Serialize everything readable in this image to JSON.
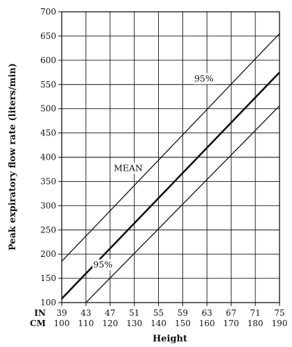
{
  "chart_data": {
    "type": "line",
    "title": "",
    "xlabel": "Height",
    "ylabel": "Peak expiratory flow rate (liters/min)",
    "ylim": [
      100,
      700
    ],
    "yticks": [
      100,
      150,
      200,
      250,
      300,
      350,
      400,
      450,
      500,
      550,
      600,
      650,
      700
    ],
    "xlim": [
      39,
      75
    ],
    "grid": true,
    "x_axis_rows": [
      {
        "label": "IN",
        "ticks": [
          "39",
          "43",
          "47",
          "51",
          "55",
          "59",
          "63",
          "67",
          "71",
          "75"
        ]
      },
      {
        "label": "CM",
        "ticks": [
          "100",
          "110",
          "120",
          "130",
          "140",
          "150",
          "160",
          "170",
          "180",
          "190"
        ]
      }
    ],
    "series": [
      {
        "name": "95%",
        "role": "upper",
        "points": [
          [
            39,
            185
          ],
          [
            75,
            655
          ]
        ]
      },
      {
        "name": "MEAN",
        "role": "mean",
        "points": [
          [
            39,
            108
          ],
          [
            75,
            575
          ]
        ]
      },
      {
        "name": "95%",
        "role": "lower",
        "points": [
          [
            43,
            100
          ],
          [
            75,
            506
          ]
        ]
      }
    ],
    "line_labels": [
      {
        "text": "95%",
        "x": 62.5,
        "y": 562
      },
      {
        "text": "MEAN",
        "x": 50,
        "y": 377
      },
      {
        "text": "95%",
        "x": 45.8,
        "y": 178
      }
    ]
  }
}
